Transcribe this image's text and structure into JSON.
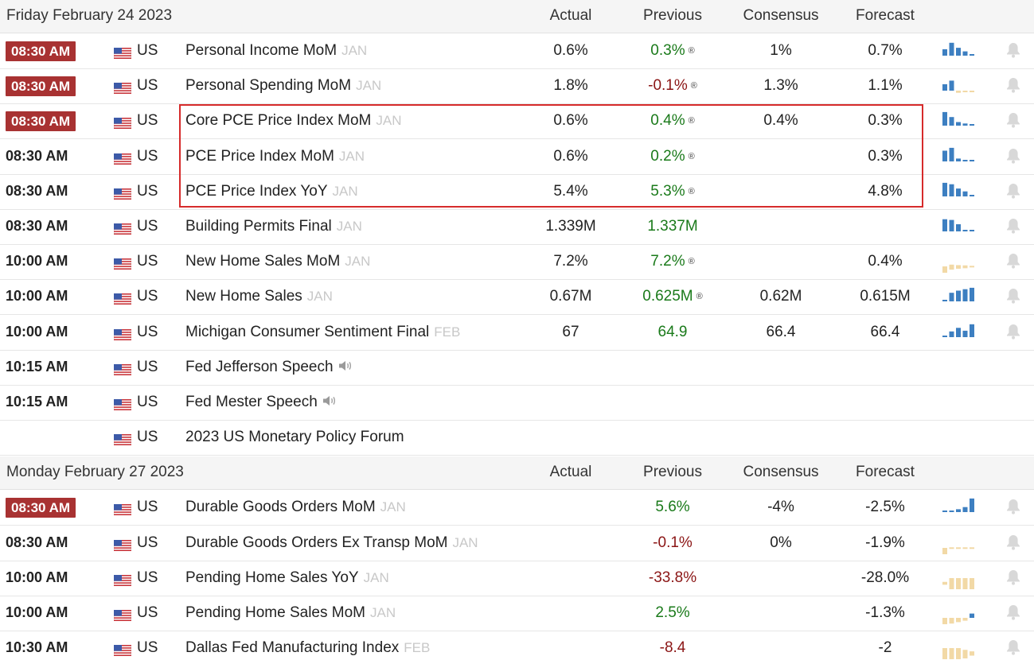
{
  "colors": {
    "highlight_badge": "#a83232",
    "positive": "#1a7a1a",
    "negative": "#8b1515",
    "spark_blue": "#3d7fc1",
    "spark_tan": "#f2d9a6",
    "selection_box": "#d62b2b"
  },
  "icons": {
    "flag": "us-flag-icon",
    "sparkline": "sparkline-chart-icon",
    "alert": "bell-icon",
    "speech": "speaker-icon"
  },
  "sections": [
    {
      "date": "Friday February 24 2023",
      "columns": {
        "actual": "Actual",
        "previous": "Previous",
        "consensus": "Consensus",
        "forecast": "Forecast"
      },
      "rows": [
        {
          "time": "08:30 AM",
          "highlight": true,
          "country": "US",
          "event": "Personal Income MoM",
          "period": "JAN",
          "actual": "0.6%",
          "previous": "0.3%",
          "prev_dir": "pos",
          "revised": "®",
          "consensus": "1%",
          "forecast": "0.7%",
          "spark": [
            [
              "b",
              0.45
            ],
            [
              "b",
              0.9
            ],
            [
              "b",
              0.55
            ],
            [
              "b",
              0.3
            ],
            [
              "d",
              0.1
            ]
          ]
        },
        {
          "time": "08:30 AM",
          "highlight": true,
          "country": "US",
          "event": "Personal Spending MoM",
          "period": "JAN",
          "actual": "1.8%",
          "previous": "-0.1%",
          "prev_dir": "neg",
          "revised": "®",
          "consensus": "1.3%",
          "forecast": "1.1%",
          "spark": [
            [
              "b",
              0.45
            ],
            [
              "b",
              0.7
            ],
            [
              "t",
              0.15
            ],
            [
              "t",
              0.1
            ],
            [
              "t",
              0.1
            ]
          ]
        },
        {
          "time": "08:30 AM",
          "highlight": true,
          "country": "US",
          "event": "Core PCE Price Index MoM",
          "period": "JAN",
          "actual": "0.6%",
          "previous": "0.4%",
          "prev_dir": "pos",
          "revised": "®",
          "consensus": "0.4%",
          "forecast": "0.3%",
          "spark": [
            [
              "b",
              0.95
            ],
            [
              "b",
              0.6
            ],
            [
              "b",
              0.25
            ],
            [
              "b",
              0.15
            ],
            [
              "d",
              0.1
            ]
          ]
        },
        {
          "time": "08:30 AM",
          "highlight": false,
          "country": "US",
          "event": "PCE Price Index MoM",
          "period": "JAN",
          "actual": "0.6%",
          "previous": "0.2%",
          "prev_dir": "pos",
          "revised": "®",
          "consensus": "",
          "forecast": "0.3%",
          "spark": [
            [
              "b",
              0.75
            ],
            [
              "b",
              0.95
            ],
            [
              "b",
              0.2
            ],
            [
              "d",
              0.1
            ],
            [
              "d",
              0.1
            ]
          ]
        },
        {
          "time": "08:30 AM",
          "highlight": false,
          "country": "US",
          "event": "PCE Price Index YoY",
          "period": "JAN",
          "actual": "5.4%",
          "previous": "5.3%",
          "prev_dir": "pos",
          "revised": "®",
          "consensus": "",
          "forecast": "4.8%",
          "spark": [
            [
              "b",
              0.95
            ],
            [
              "b",
              0.85
            ],
            [
              "b",
              0.55
            ],
            [
              "b",
              0.35
            ],
            [
              "d",
              0.1
            ]
          ]
        },
        {
          "time": "08:30 AM",
          "highlight": false,
          "country": "US",
          "event": "Building Permits Final",
          "period": "JAN",
          "actual": "1.339M",
          "previous": "1.337M",
          "prev_dir": "pos",
          "revised": "",
          "consensus": "",
          "forecast": "",
          "spark": [
            [
              "b",
              0.85
            ],
            [
              "b",
              0.8
            ],
            [
              "b",
              0.5
            ],
            [
              "d",
              0.1
            ],
            [
              "d",
              0.1
            ]
          ]
        },
        {
          "time": "10:00 AM",
          "highlight": false,
          "country": "US",
          "event": "New Home Sales MoM",
          "period": "JAN",
          "actual": "7.2%",
          "previous": "7.2%",
          "prev_dir": "pos",
          "revised": "®",
          "consensus": "",
          "forecast": "0.4%",
          "spark": [
            [
              "t",
              0.6
            ],
            [
              "u",
              0.35
            ],
            [
              "u",
              0.25
            ],
            [
              "u",
              0.2
            ],
            [
              "u",
              0.1
            ]
          ]
        },
        {
          "time": "10:00 AM",
          "highlight": false,
          "country": "US",
          "event": "New Home Sales",
          "period": "JAN",
          "actual": "0.67M",
          "previous": "0.625M",
          "prev_dir": "pos",
          "revised": "®",
          "consensus": "0.62M",
          "forecast": "0.615M",
          "spark": [
            [
              "d",
              0.1
            ],
            [
              "b",
              0.6
            ],
            [
              "b",
              0.75
            ],
            [
              "b",
              0.85
            ],
            [
              "b",
              0.95
            ]
          ]
        },
        {
          "time": "10:00 AM",
          "highlight": false,
          "country": "US",
          "event": "Michigan Consumer Sentiment Final",
          "period": "FEB",
          "actual": "67",
          "previous": "64.9",
          "prev_dir": "pos",
          "revised": "",
          "consensus": "66.4",
          "forecast": "66.4",
          "spark": [
            [
              "d",
              0.1
            ],
            [
              "b",
              0.4
            ],
            [
              "b",
              0.65
            ],
            [
              "b",
              0.45
            ],
            [
              "b",
              0.9
            ]
          ]
        },
        {
          "time": "10:15 AM",
          "highlight": false,
          "country": "US",
          "event": "Fed Jefferson Speech",
          "period": "",
          "speech": true,
          "actual": "",
          "previous": "",
          "prev_dir": "pos",
          "revised": "",
          "consensus": "",
          "forecast": "",
          "spark": []
        },
        {
          "time": "10:15 AM",
          "highlight": false,
          "country": "US",
          "event": "Fed Mester Speech",
          "period": "",
          "speech": true,
          "actual": "",
          "previous": "",
          "prev_dir": "pos",
          "revised": "",
          "consensus": "",
          "forecast": "",
          "spark": []
        },
        {
          "time": "",
          "highlight": false,
          "country": "US",
          "event": "2023 US Monetary Policy Forum",
          "period": "",
          "actual": "",
          "previous": "",
          "prev_dir": "pos",
          "revised": "",
          "consensus": "",
          "forecast": "",
          "spark": []
        }
      ]
    },
    {
      "date": "Monday February 27 2023",
      "columns": {
        "actual": "Actual",
        "previous": "Previous",
        "consensus": "Consensus",
        "forecast": "Forecast"
      },
      "rows": [
        {
          "time": "08:30 AM",
          "highlight": true,
          "country": "US",
          "event": "Durable Goods Orders MoM",
          "period": "JAN",
          "actual": "",
          "previous": "5.6%",
          "prev_dir": "pos",
          "revised": "",
          "consensus": "-4%",
          "forecast": "-2.5%",
          "spark": [
            [
              "d",
              0.1
            ],
            [
              "d",
              0.1
            ],
            [
              "b",
              0.2
            ],
            [
              "b",
              0.35
            ],
            [
              "b",
              0.95
            ]
          ]
        },
        {
          "time": "08:30 AM",
          "highlight": false,
          "country": "US",
          "event": "Durable Goods Orders Ex Transp MoM",
          "period": "JAN",
          "actual": "",
          "previous": "-0.1%",
          "prev_dir": "neg",
          "revised": "",
          "consensus": "0%",
          "forecast": "-1.9%",
          "spark": [
            [
              "t",
              0.9
            ],
            [
              "u",
              0.1
            ],
            [
              "u",
              0.1
            ],
            [
              "u",
              0.1
            ],
            [
              "u",
              0.1
            ]
          ]
        },
        {
          "time": "10:00 AM",
          "highlight": false,
          "country": "US",
          "event": "Pending Home Sales YoY",
          "period": "JAN",
          "actual": "",
          "previous": "-33.8%",
          "prev_dir": "neg",
          "revised": "",
          "consensus": "",
          "forecast": "-28.0%",
          "spark": [
            [
              "u",
              0.2
            ],
            [
              "u",
              0.95
            ],
            [
              "u",
              0.95
            ],
            [
              "u",
              0.95
            ],
            [
              "u",
              0.95
            ]
          ]
        },
        {
          "time": "10:00 AM",
          "highlight": false,
          "country": "US",
          "event": "Pending Home Sales MoM",
          "period": "JAN",
          "actual": "",
          "previous": "2.5%",
          "prev_dir": "pos",
          "revised": "",
          "consensus": "",
          "forecast": "-1.3%",
          "spark": [
            [
              "t",
              0.55
            ],
            [
              "t",
              0.4
            ],
            [
              "t",
              0.3
            ],
            [
              "t",
              0.2
            ],
            [
              "b",
              0.3
            ]
          ]
        },
        {
          "time": "10:30 AM",
          "highlight": false,
          "country": "US",
          "event": "Dallas Fed Manufacturing Index",
          "period": "FEB",
          "actual": "",
          "previous": "-8.4",
          "prev_dir": "neg",
          "revised": "",
          "consensus": "",
          "forecast": "-2",
          "spark": [
            [
              "u",
              0.95
            ],
            [
              "u",
              0.95
            ],
            [
              "u",
              0.95
            ],
            [
              "u",
              0.6
            ],
            [
              "u",
              0.3
            ]
          ]
        }
      ]
    }
  ]
}
